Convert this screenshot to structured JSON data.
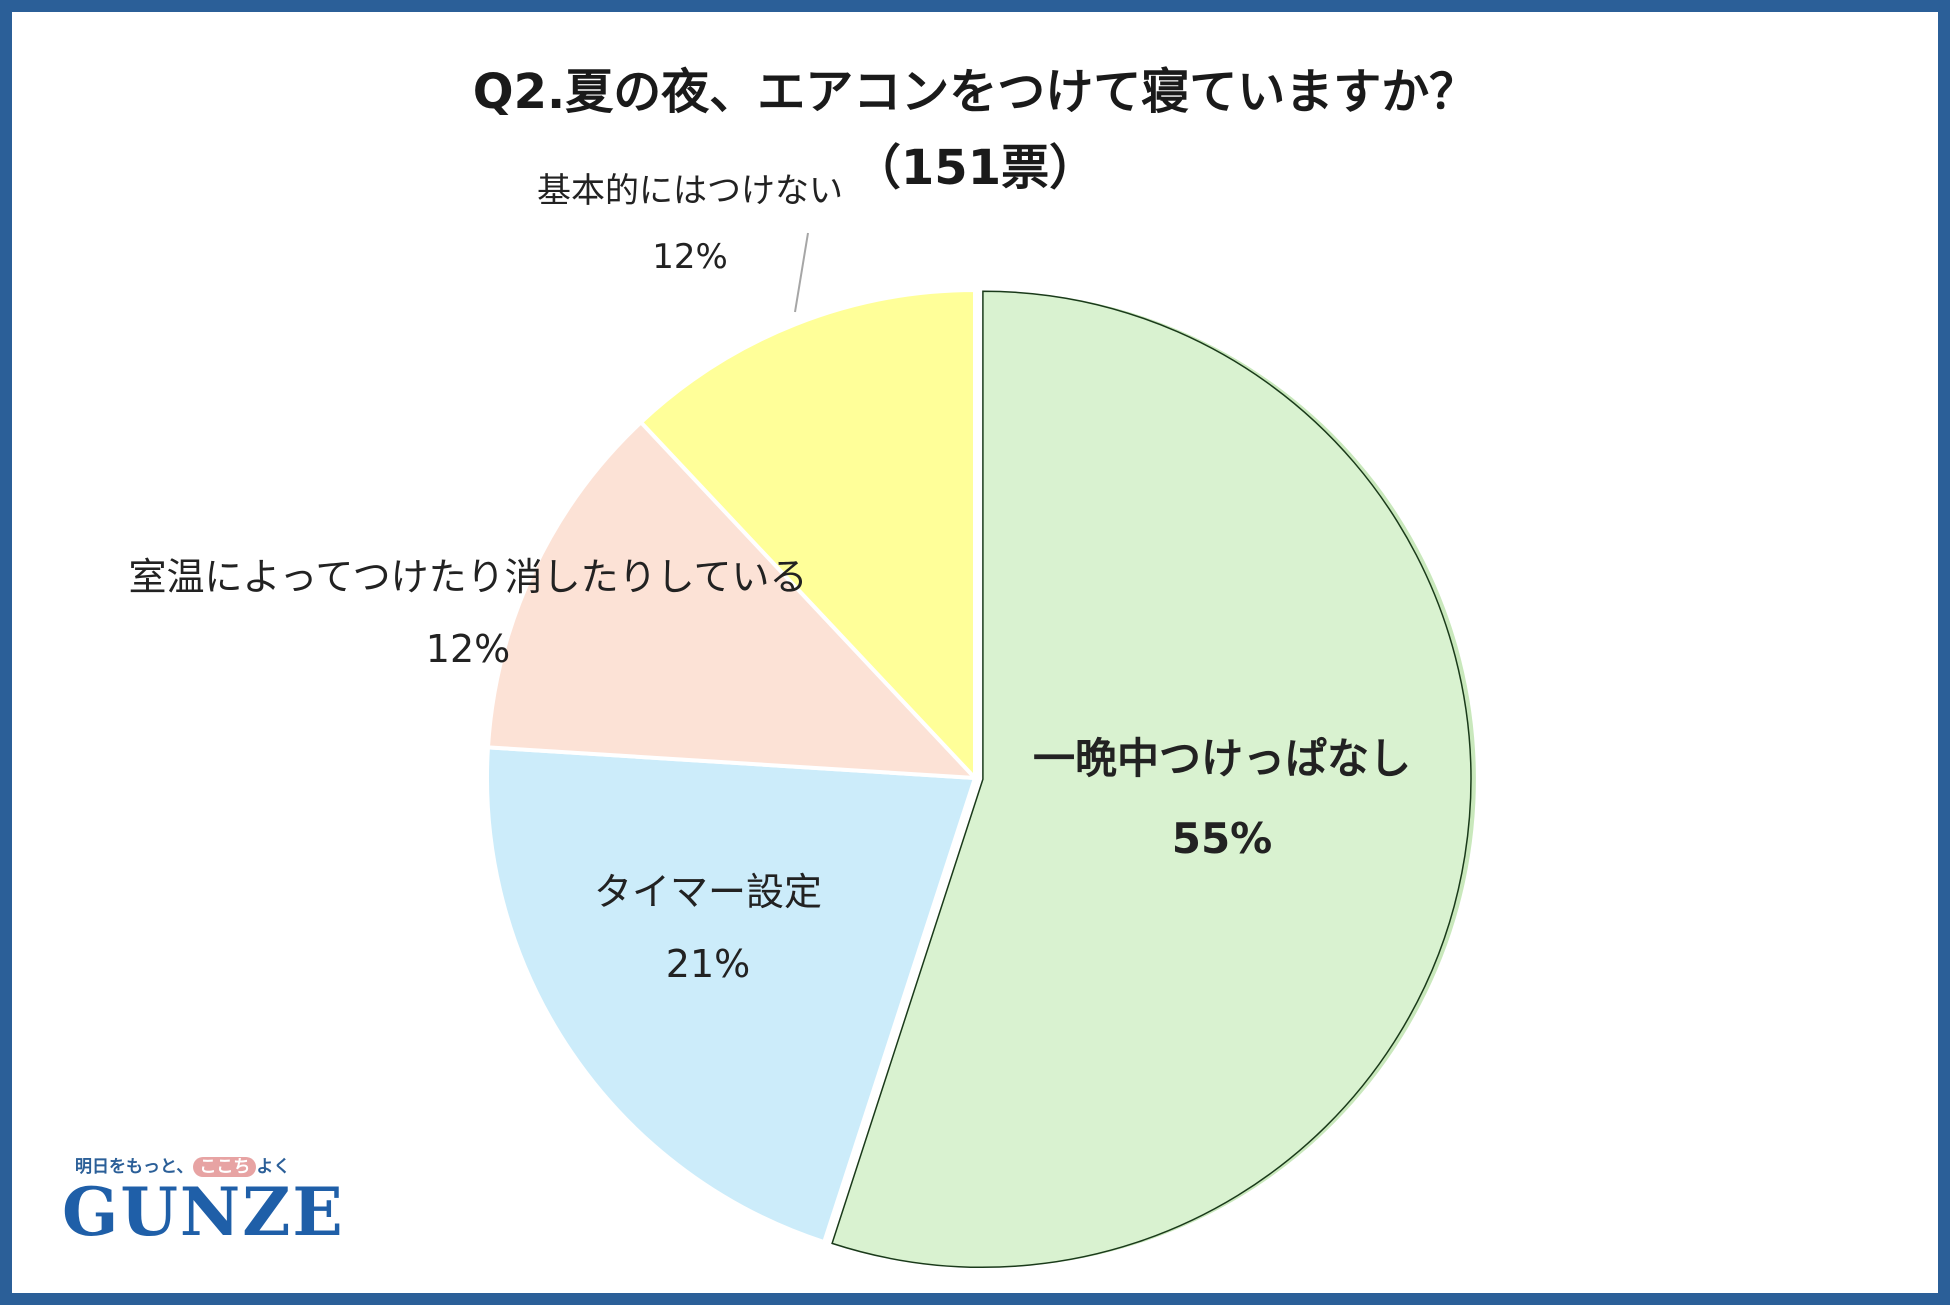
{
  "chart_data": {
    "type": "pie",
    "title": "Q2.夏の夜、エアコンをつけて寝ていますか？",
    "subtitle": "（151票）",
    "start": "12 o'clock",
    "direction": "clockwise",
    "slices": [
      {
        "label": "一晩中つけっぱなし",
        "value": 55,
        "value_label": "55%",
        "color": "#d9f2d0",
        "edge": "#1a3a1a"
      },
      {
        "label": "タイマー設定",
        "value": 21,
        "value_label": "21%",
        "color": "#ccecfa",
        "edge": "#ffffff"
      },
      {
        "label": "室温によってつけたり消したりしている",
        "value": 12,
        "value_label": "12%",
        "color": "#fce2d6",
        "edge": "#ffffff"
      },
      {
        "label": "基本的にはつけない",
        "value": 12,
        "value_label": "12%",
        "color": "#ffff99",
        "edge": "#ffffff"
      }
    ]
  },
  "logo": {
    "tagline_before": "明日をもっと、",
    "tagline_highlight": "ここち",
    "tagline_after": "よく",
    "wordmark": "GUNZE"
  }
}
